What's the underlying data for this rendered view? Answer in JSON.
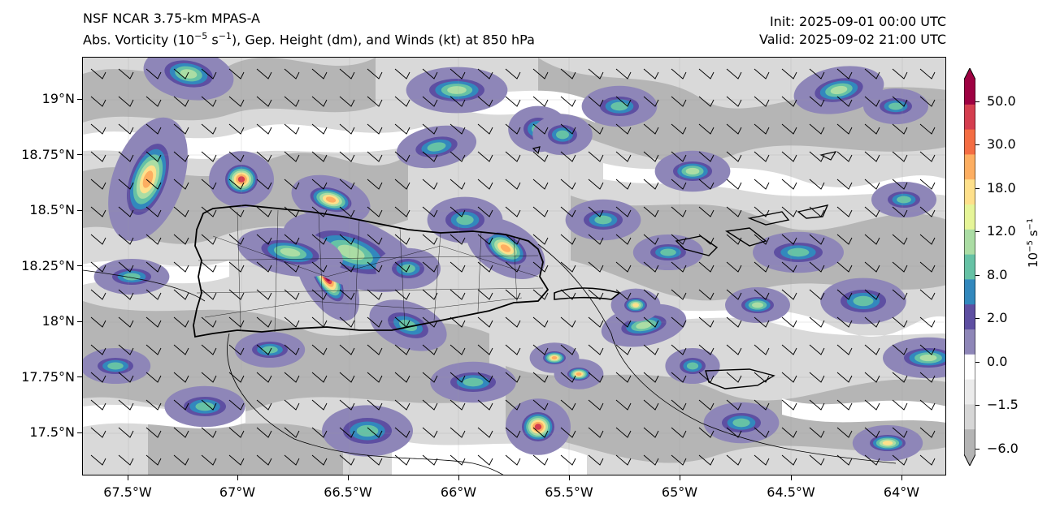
{
  "header": {
    "title_line1": "NSF NCAR 3.75-km MPAS-A",
    "title_line2_prefix": "Abs. Vorticity (10",
    "title_line2_exp": "−5",
    "title_line2_mid": " s",
    "title_line2_exp2": "−1",
    "title_line2_suffix": "), Gep. Height (dm), and Winds (kt) at 850 hPa",
    "init": "Init: 2025-09-01 00:00 UTC",
    "valid": "Valid: 2025-09-02 21:00 UTC"
  },
  "map": {
    "region": "Puerto Rico and Virgin Islands",
    "extent": {
      "lon_min": -67.72,
      "lon_max": -63.82,
      "lat_min": 17.3,
      "lat_max": 19.2
    },
    "lat_ticks": [
      "19°N",
      "18.75°N",
      "18.5°N",
      "18.25°N",
      "18°N",
      "17.75°N",
      "17.5°N"
    ],
    "lat_values": [
      19.0,
      18.75,
      18.5,
      18.25,
      18.0,
      17.75,
      17.5
    ],
    "lon_ticks": [
      "67.5°W",
      "67°W",
      "66.5°W",
      "66°W",
      "65.5°W",
      "65°W",
      "64.5°W",
      "64°W"
    ],
    "lon_values": [
      -67.5,
      -67.0,
      -66.5,
      -66.0,
      -65.5,
      -65.0,
      -64.5,
      -64.0
    ],
    "wind_barb_direction": "southeasterly"
  },
  "colorbar": {
    "tick_labels": [
      "50.0",
      "30.0",
      "18.0",
      "12.0",
      "8.0",
      "2.0",
      "0.0",
      "−1.5",
      "−6.0"
    ],
    "units_base": "10",
    "units_exp": "−5",
    "units_tail": " s",
    "units_exp2": "−1",
    "levels_colors": [
      "#9e0142",
      "#d53e4f",
      "#f46d43",
      "#fdae61",
      "#fee08b",
      "#e6f598",
      "#abdda4",
      "#66c2a5",
      "#3288bd",
      "#5e4fa2",
      "#8e86b8",
      "#ffffff",
      "#ebebeb",
      "#d6d6d6",
      "#b4b4b4"
    ]
  }
}
